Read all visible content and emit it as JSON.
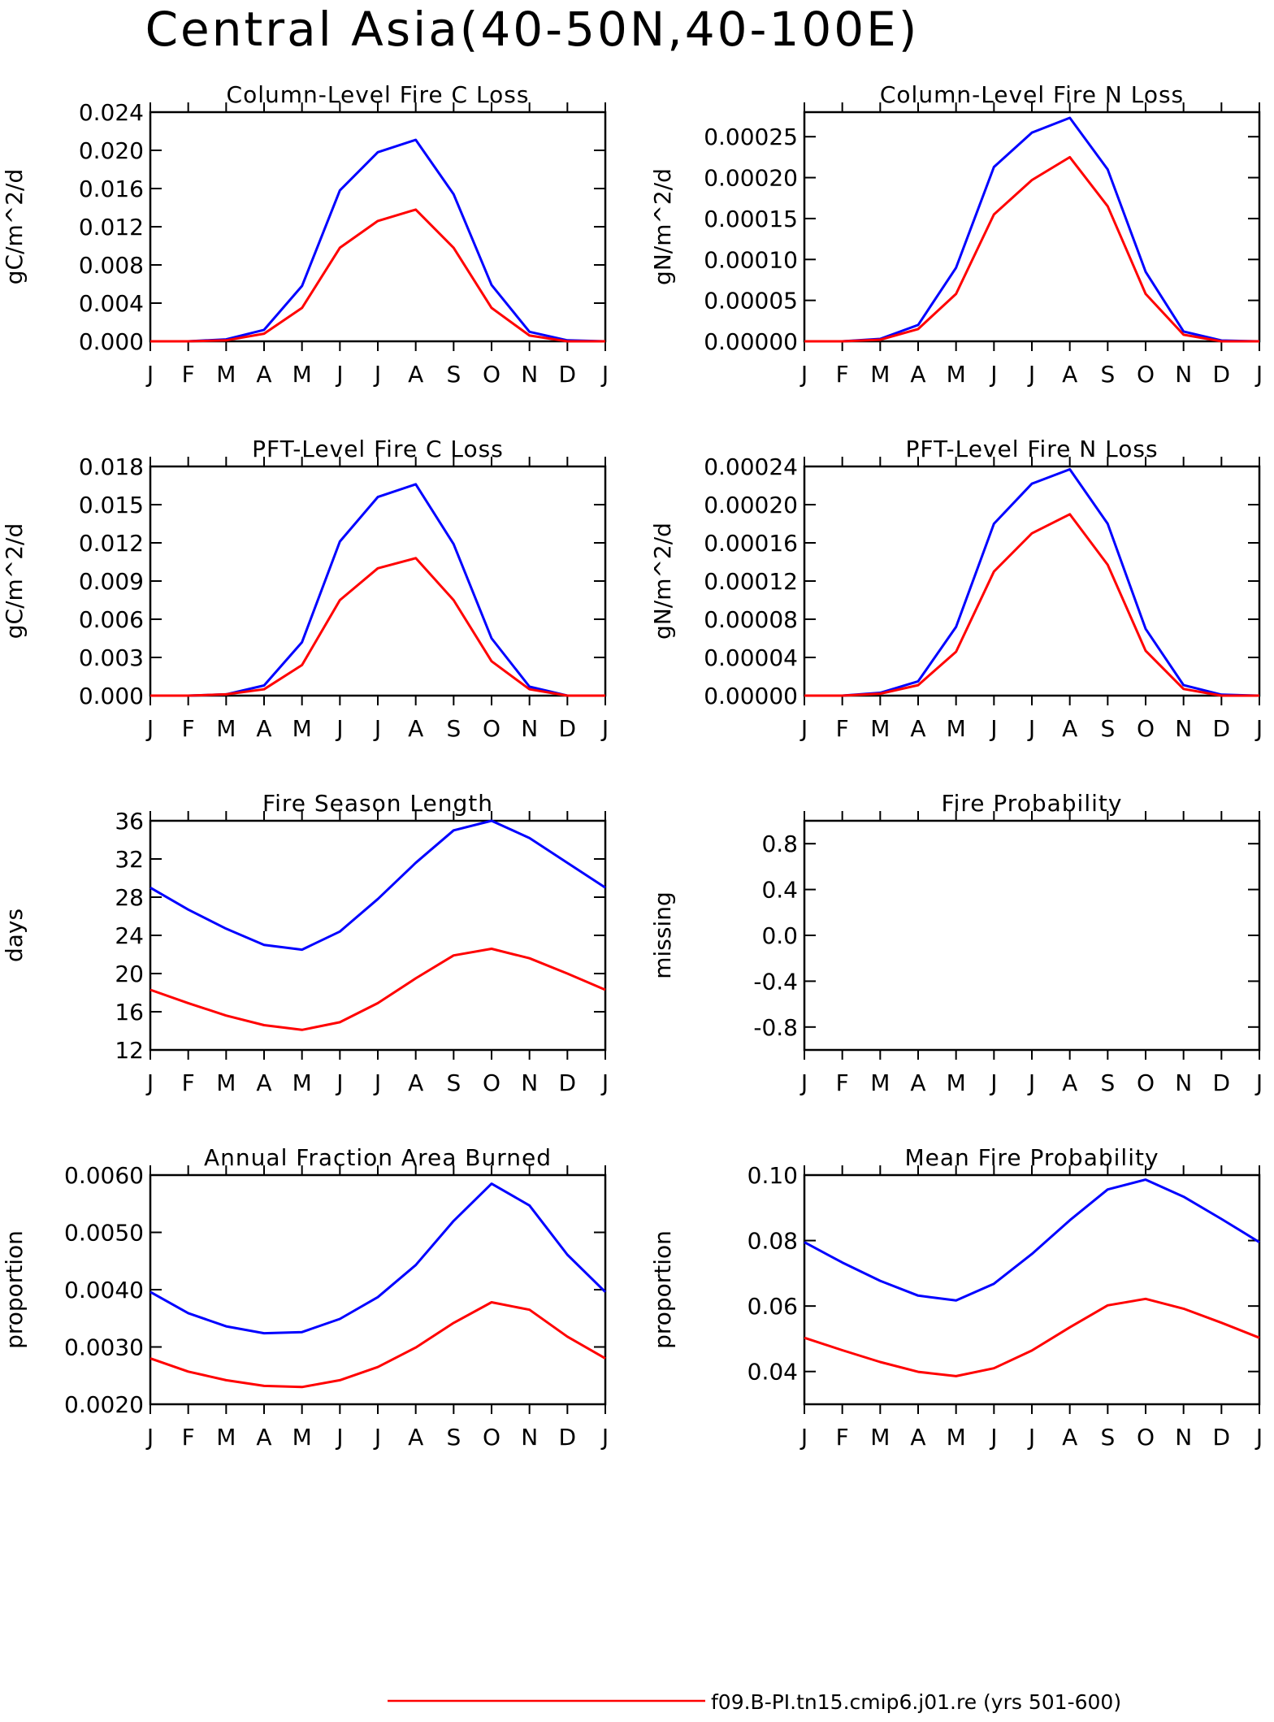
{
  "title": "Central Asia(40-50N,40-100E)",
  "colors": {
    "case": "#0000ff",
    "control": "#ff0000",
    "axis": "#000000"
  },
  "legend": {
    "control_label": "f09.B-PI.tn15.cmip6.j01.re (yrs 501-600)"
  },
  "chart_data": [
    {
      "type": "line",
      "title": "Column-Level Fire C Loss",
      "ylabel": "gC/m^2/d",
      "x": [
        "J",
        "F",
        "M",
        "A",
        "M",
        "J",
        "J",
        "A",
        "S",
        "O",
        "N",
        "D",
        "J"
      ],
      "ylim": [
        0,
        0.024
      ],
      "yticks": [
        "0.000",
        "0.004",
        "0.008",
        "0.012",
        "0.016",
        "0.020",
        "0.024"
      ],
      "series": [
        {
          "color": "#0000ff",
          "values": [
            0,
            0,
            0.0002,
            0.0012,
            0.0058,
            0.0158,
            0.0198,
            0.0211,
            0.0154,
            0.0059,
            0.001,
            0.0001,
            0
          ]
        },
        {
          "color": "#ff0000",
          "values": [
            0,
            0,
            0.0001,
            0.0008,
            0.0035,
            0.0098,
            0.0126,
            0.0138,
            0.0098,
            0.0035,
            0.0006,
            0,
            0
          ]
        }
      ]
    },
    {
      "type": "line",
      "title": "Column-Level Fire N Loss",
      "ylabel": "gN/m^2/d",
      "x": [
        "J",
        "F",
        "M",
        "A",
        "M",
        "J",
        "J",
        "A",
        "S",
        "O",
        "N",
        "D",
        "J"
      ],
      "ylim": [
        0,
        0.00028
      ],
      "yticks": [
        "0.00000",
        "0.00005",
        "0.00010",
        "0.00015",
        "0.00020",
        "0.00025"
      ],
      "series": [
        {
          "color": "#0000ff",
          "values": [
            0,
            0,
            3e-06,
            2e-05,
            9e-05,
            0.000213,
            0.000255,
            0.000273,
            0.00021,
            8.5e-05,
            1.2e-05,
            1e-06,
            0
          ]
        },
        {
          "color": "#ff0000",
          "values": [
            0,
            0,
            2e-06,
            1.5e-05,
            5.8e-05,
            0.000155,
            0.000197,
            0.000225,
            0.000165,
            5.8e-05,
            8e-06,
            0,
            0
          ]
        }
      ]
    },
    {
      "type": "line",
      "title": "PFT-Level Fire C Loss",
      "ylabel": "gC/m^2/d",
      "x": [
        "J",
        "F",
        "M",
        "A",
        "M",
        "J",
        "J",
        "A",
        "S",
        "O",
        "N",
        "D",
        "J"
      ],
      "ylim": [
        0,
        0.018
      ],
      "yticks": [
        "0.000",
        "0.003",
        "0.006",
        "0.009",
        "0.012",
        "0.015",
        "0.018"
      ],
      "series": [
        {
          "color": "#0000ff",
          "values": [
            0,
            0,
            0.0001,
            0.0008,
            0.0042,
            0.0121,
            0.0156,
            0.0166,
            0.0119,
            0.0045,
            0.0007,
            0,
            0
          ]
        },
        {
          "color": "#ff0000",
          "values": [
            0,
            0,
            0.0001,
            0.0005,
            0.0024,
            0.0075,
            0.01,
            0.0108,
            0.0075,
            0.0027,
            0.0005,
            0,
            0
          ]
        }
      ]
    },
    {
      "type": "line",
      "title": "PFT-Level Fire N Loss",
      "ylabel": "gN/m^2/d",
      "x": [
        "J",
        "F",
        "M",
        "A",
        "M",
        "J",
        "J",
        "A",
        "S",
        "O",
        "N",
        "D",
        "J"
      ],
      "ylim": [
        0,
        0.00024
      ],
      "yticks": [
        "0.00000",
        "0.00004",
        "0.00008",
        "0.00012",
        "0.00016",
        "0.00020",
        "0.00024"
      ],
      "series": [
        {
          "color": "#0000ff",
          "values": [
            0,
            0,
            3e-06,
            1.5e-05,
            7.2e-05,
            0.00018,
            0.000222,
            0.000237,
            0.00018,
            7e-05,
            1.1e-05,
            1e-06,
            0
          ]
        },
        {
          "color": "#ff0000",
          "values": [
            0,
            0,
            2e-06,
            1.1e-05,
            4.6e-05,
            0.00013,
            0.00017,
            0.00019,
            0.000137,
            4.7e-05,
            7e-06,
            0,
            0
          ]
        }
      ]
    },
    {
      "type": "line",
      "title": "Fire Season Length",
      "ylabel": "days",
      "x": [
        "J",
        "F",
        "M",
        "A",
        "M",
        "J",
        "J",
        "A",
        "S",
        "O",
        "N",
        "D",
        "J"
      ],
      "ylim": [
        12,
        36
      ],
      "yticks": [
        "12",
        "16",
        "20",
        "24",
        "28",
        "32",
        "36"
      ],
      "series": [
        {
          "color": "#0000ff",
          "values": [
            29.0,
            26.7,
            24.7,
            23.0,
            22.5,
            24.4,
            27.8,
            31.6,
            35.0,
            36.0,
            34.2,
            31.6,
            29.0
          ]
        },
        {
          "color": "#ff0000",
          "values": [
            18.3,
            16.9,
            15.6,
            14.6,
            14.1,
            14.9,
            16.9,
            19.5,
            21.9,
            22.6,
            21.6,
            20.0,
            18.3
          ]
        }
      ]
    },
    {
      "type": "line",
      "title": "Fire Probability",
      "ylabel": "missing",
      "x": [
        "J",
        "F",
        "M",
        "A",
        "M",
        "J",
        "J",
        "A",
        "S",
        "O",
        "N",
        "D",
        "J"
      ],
      "ylim": [
        -1,
        1
      ],
      "yticks": [
        "-0.8",
        "-0.4",
        "0.0",
        "0.4",
        "0.8"
      ],
      "ytick_values": [
        -0.8,
        -0.4,
        0,
        0.4,
        0.8
      ],
      "series": []
    },
    {
      "type": "line",
      "title": "Annual Fraction Area Burned",
      "ylabel": "proportion",
      "x": [
        "J",
        "F",
        "M",
        "A",
        "M",
        "J",
        "J",
        "A",
        "S",
        "O",
        "N",
        "D",
        "J"
      ],
      "ylim": [
        0.002,
        0.006
      ],
      "yticks": [
        "0.0020",
        "0.0030",
        "0.0040",
        "0.0050",
        "0.0060"
      ],
      "series": [
        {
          "color": "#0000ff",
          "values": [
            0.00396,
            0.00359,
            0.00336,
            0.00324,
            0.00326,
            0.00349,
            0.00387,
            0.00443,
            0.0052,
            0.00585,
            0.00547,
            0.00461,
            0.00396
          ]
        },
        {
          "color": "#ff0000",
          "values": [
            0.0028,
            0.00257,
            0.00242,
            0.00232,
            0.0023,
            0.00242,
            0.00265,
            0.00299,
            0.00342,
            0.00378,
            0.00365,
            0.00318,
            0.0028
          ]
        }
      ]
    },
    {
      "type": "line",
      "title": "Mean Fire Probability",
      "ylabel": "proportion",
      "x": [
        "J",
        "F",
        "M",
        "A",
        "M",
        "J",
        "J",
        "A",
        "S",
        "O",
        "N",
        "D",
        "J"
      ],
      "ylim": [
        0.03,
        0.1
      ],
      "yticks": [
        "0.04",
        "0.06",
        "0.08",
        "0.10"
      ],
      "ytick_values": [
        0.04,
        0.06,
        0.08,
        0.1
      ],
      "series": [
        {
          "color": "#0000ff",
          "values": [
            0.0795,
            0.0733,
            0.0677,
            0.0632,
            0.0617,
            0.0668,
            0.0759,
            0.0862,
            0.0956,
            0.0986,
            0.0934,
            0.0866,
            0.0795
          ]
        },
        {
          "color": "#ff0000",
          "values": [
            0.0503,
            0.0465,
            0.0429,
            0.0399,
            0.0386,
            0.041,
            0.0464,
            0.0535,
            0.0602,
            0.0622,
            0.0592,
            0.0549,
            0.0503
          ]
        }
      ]
    }
  ]
}
